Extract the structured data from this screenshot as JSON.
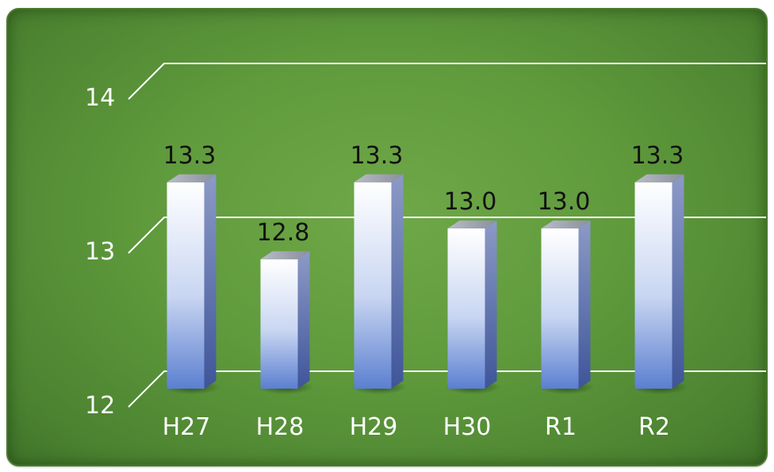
{
  "chart_data": {
    "type": "bar",
    "categories": [
      "H27",
      "H28",
      "H29",
      "H30",
      "R1",
      "R2"
    ],
    "values": [
      13.3,
      12.8,
      13.3,
      13.0,
      13.0,
      13.3
    ],
    "data_labels": [
      "13.3",
      "12.8",
      "13.3",
      "13.0",
      "13.0",
      "13.3"
    ],
    "ylim": [
      12,
      14
    ],
    "yticks": [
      "12",
      "13",
      "14"
    ],
    "title": "",
    "xlabel": "",
    "ylabel": "",
    "grid": true,
    "style": "3d-column",
    "colors": {
      "background": "#5f9a3c",
      "bar_front_top": "#ffffff",
      "bar_front_bottom": "#5b7fd0",
      "bar_side": "#4a63a8",
      "bar_top": "#9aa0ae",
      "gridline": "#ffffff",
      "axis_text": "#ffffff",
      "label_text": "#111111"
    }
  }
}
